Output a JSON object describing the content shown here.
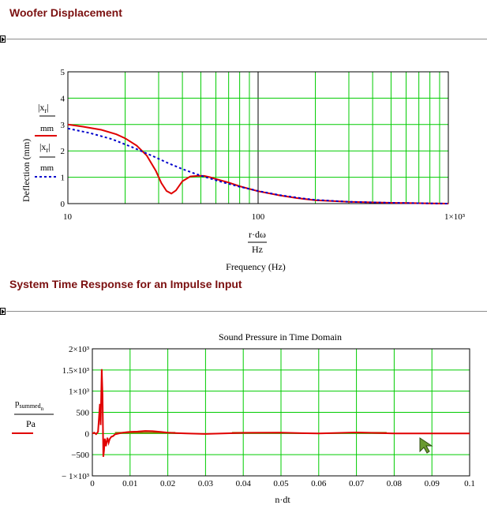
{
  "sections": [
    {
      "title": "Woofer Displacement"
    },
    {
      "title": "System Time Response for an Impulse Input"
    }
  ],
  "colors": {
    "title": "#7b1010",
    "grid": "#00cc00",
    "red": "#e00000",
    "blue": "#0000cc",
    "olive": "#808000"
  },
  "chart_data": [
    {
      "type": "line",
      "title": "",
      "xscale": "log",
      "xlim": [
        10,
        1000
      ],
      "ylim": [
        0,
        5
      ],
      "grid": true,
      "xticks": [
        "10",
        "100",
        "1×10³"
      ],
      "yticks": [
        "0",
        "1",
        "2",
        "3",
        "4",
        "5"
      ],
      "xlabel": {
        "num": "r·dω",
        "den": "Hz",
        "caption": "Frequency (Hz)"
      },
      "ylabel": "Deflection (mm)",
      "legend": [
        {
          "num": "|x₁|",
          "sub": "r",
          "den": "mm",
          "style": "red solid"
        },
        {
          "num": "|xᵣ|",
          "den": "mm",
          "style": "blue dotted"
        }
      ],
      "series": [
        {
          "color": "#e00000",
          "dash": "solid",
          "x": [
            10,
            12,
            15,
            18,
            20,
            23,
            26,
            29,
            31,
            33,
            35,
            37,
            40,
            44,
            48,
            52,
            56,
            60,
            70,
            80,
            100,
            130,
            160,
            200,
            300,
            500,
            800,
            1000
          ],
          "y": [
            3.0,
            2.92,
            2.8,
            2.63,
            2.48,
            2.2,
            1.82,
            1.25,
            0.78,
            0.48,
            0.38,
            0.5,
            0.85,
            1.03,
            1.05,
            1.05,
            1.0,
            0.93,
            0.8,
            0.66,
            0.47,
            0.31,
            0.21,
            0.13,
            0.07,
            0.03,
            0.01,
            0.0
          ]
        },
        {
          "color": "#0000cc",
          "dash": "dotted",
          "x": [
            10,
            13,
            17,
            22,
            28,
            34,
            40,
            46,
            52,
            58,
            66,
            80,
            100,
            130,
            170,
            200,
            300,
            500,
            1000
          ],
          "y": [
            2.85,
            2.68,
            2.45,
            2.13,
            1.8,
            1.52,
            1.31,
            1.15,
            1.02,
            0.92,
            0.8,
            0.64,
            0.48,
            0.32,
            0.2,
            0.14,
            0.07,
            0.03,
            0.0
          ]
        }
      ]
    },
    {
      "type": "line",
      "title": "Sound Pressure in Time Domain",
      "xlim": [
        0,
        0.1
      ],
      "ylim": [
        -1000,
        2000
      ],
      "grid": true,
      "xticks": [
        "0",
        "0.01",
        "0.02",
        "0.03",
        "0.04",
        "0.05",
        "0.06",
        "0.07",
        "0.08",
        "0.09",
        "0.1"
      ],
      "yticks": [
        "− 1×10³",
        "−500",
        "0",
        "500",
        "1×10³",
        "1.5×10³",
        "2×10³"
      ],
      "xlabel": "n·dt",
      "ylabel": {
        "num": "p",
        "sub": "summed",
        "subsub": "n",
        "den": "Pa"
      },
      "series": [
        {
          "color": "#e00000",
          "x": [
            0,
            0.0005,
            0.001,
            0.0015,
            0.002,
            0.0022,
            0.0025,
            0.0027,
            0.0029,
            0.0031,
            0.0033,
            0.0036,
            0.004,
            0.0043,
            0.0046,
            0.005,
            0.0055,
            0.006,
            0.007,
            0.008,
            0.009,
            0.01,
            0.012,
            0.014,
            0.016,
            0.018,
            0.02,
            0.022,
            0.025,
            0.03,
            0.04,
            0.05,
            0.06,
            0.07,
            0.08,
            0.09,
            0.1
          ],
          "y": [
            0,
            20,
            -15,
            40,
            700,
            200,
            1520,
            900,
            -550,
            -400,
            -120,
            -300,
            -100,
            -220,
            -130,
            -80,
            -60,
            -20,
            0,
            20,
            30,
            40,
            45,
            60,
            55,
            40,
            20,
            10,
            0,
            -10,
            15,
            20,
            0,
            25,
            0,
            0,
            0
          ]
        }
      ]
    }
  ]
}
